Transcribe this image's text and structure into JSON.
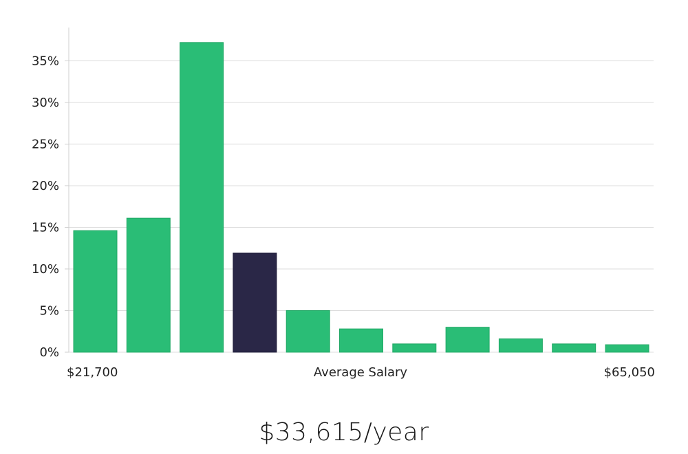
{
  "chart_data": {
    "type": "bar",
    "values": [
      14.6,
      16.1,
      37.2,
      11.9,
      5.0,
      2.8,
      1.0,
      3.0,
      1.6,
      1.0,
      0.9
    ],
    "highlight_index": 3,
    "y_ticks": [
      "0%",
      "5%",
      "10%",
      "15%",
      "20%",
      "25%",
      "30%",
      "35%"
    ],
    "y_tick_values": [
      0,
      5,
      10,
      15,
      20,
      25,
      30,
      35
    ],
    "ylim": [
      0,
      39
    ],
    "grid": true,
    "x_min_label": "$21,700",
    "x_center_label": "Average Salary",
    "x_max_label": "$65,050",
    "colors": {
      "bar": "#2abd76",
      "highlight": "#2a2747",
      "grid": "#dcdcdc",
      "axis": "#cfcfcf"
    }
  },
  "headline": "$33,615/year"
}
